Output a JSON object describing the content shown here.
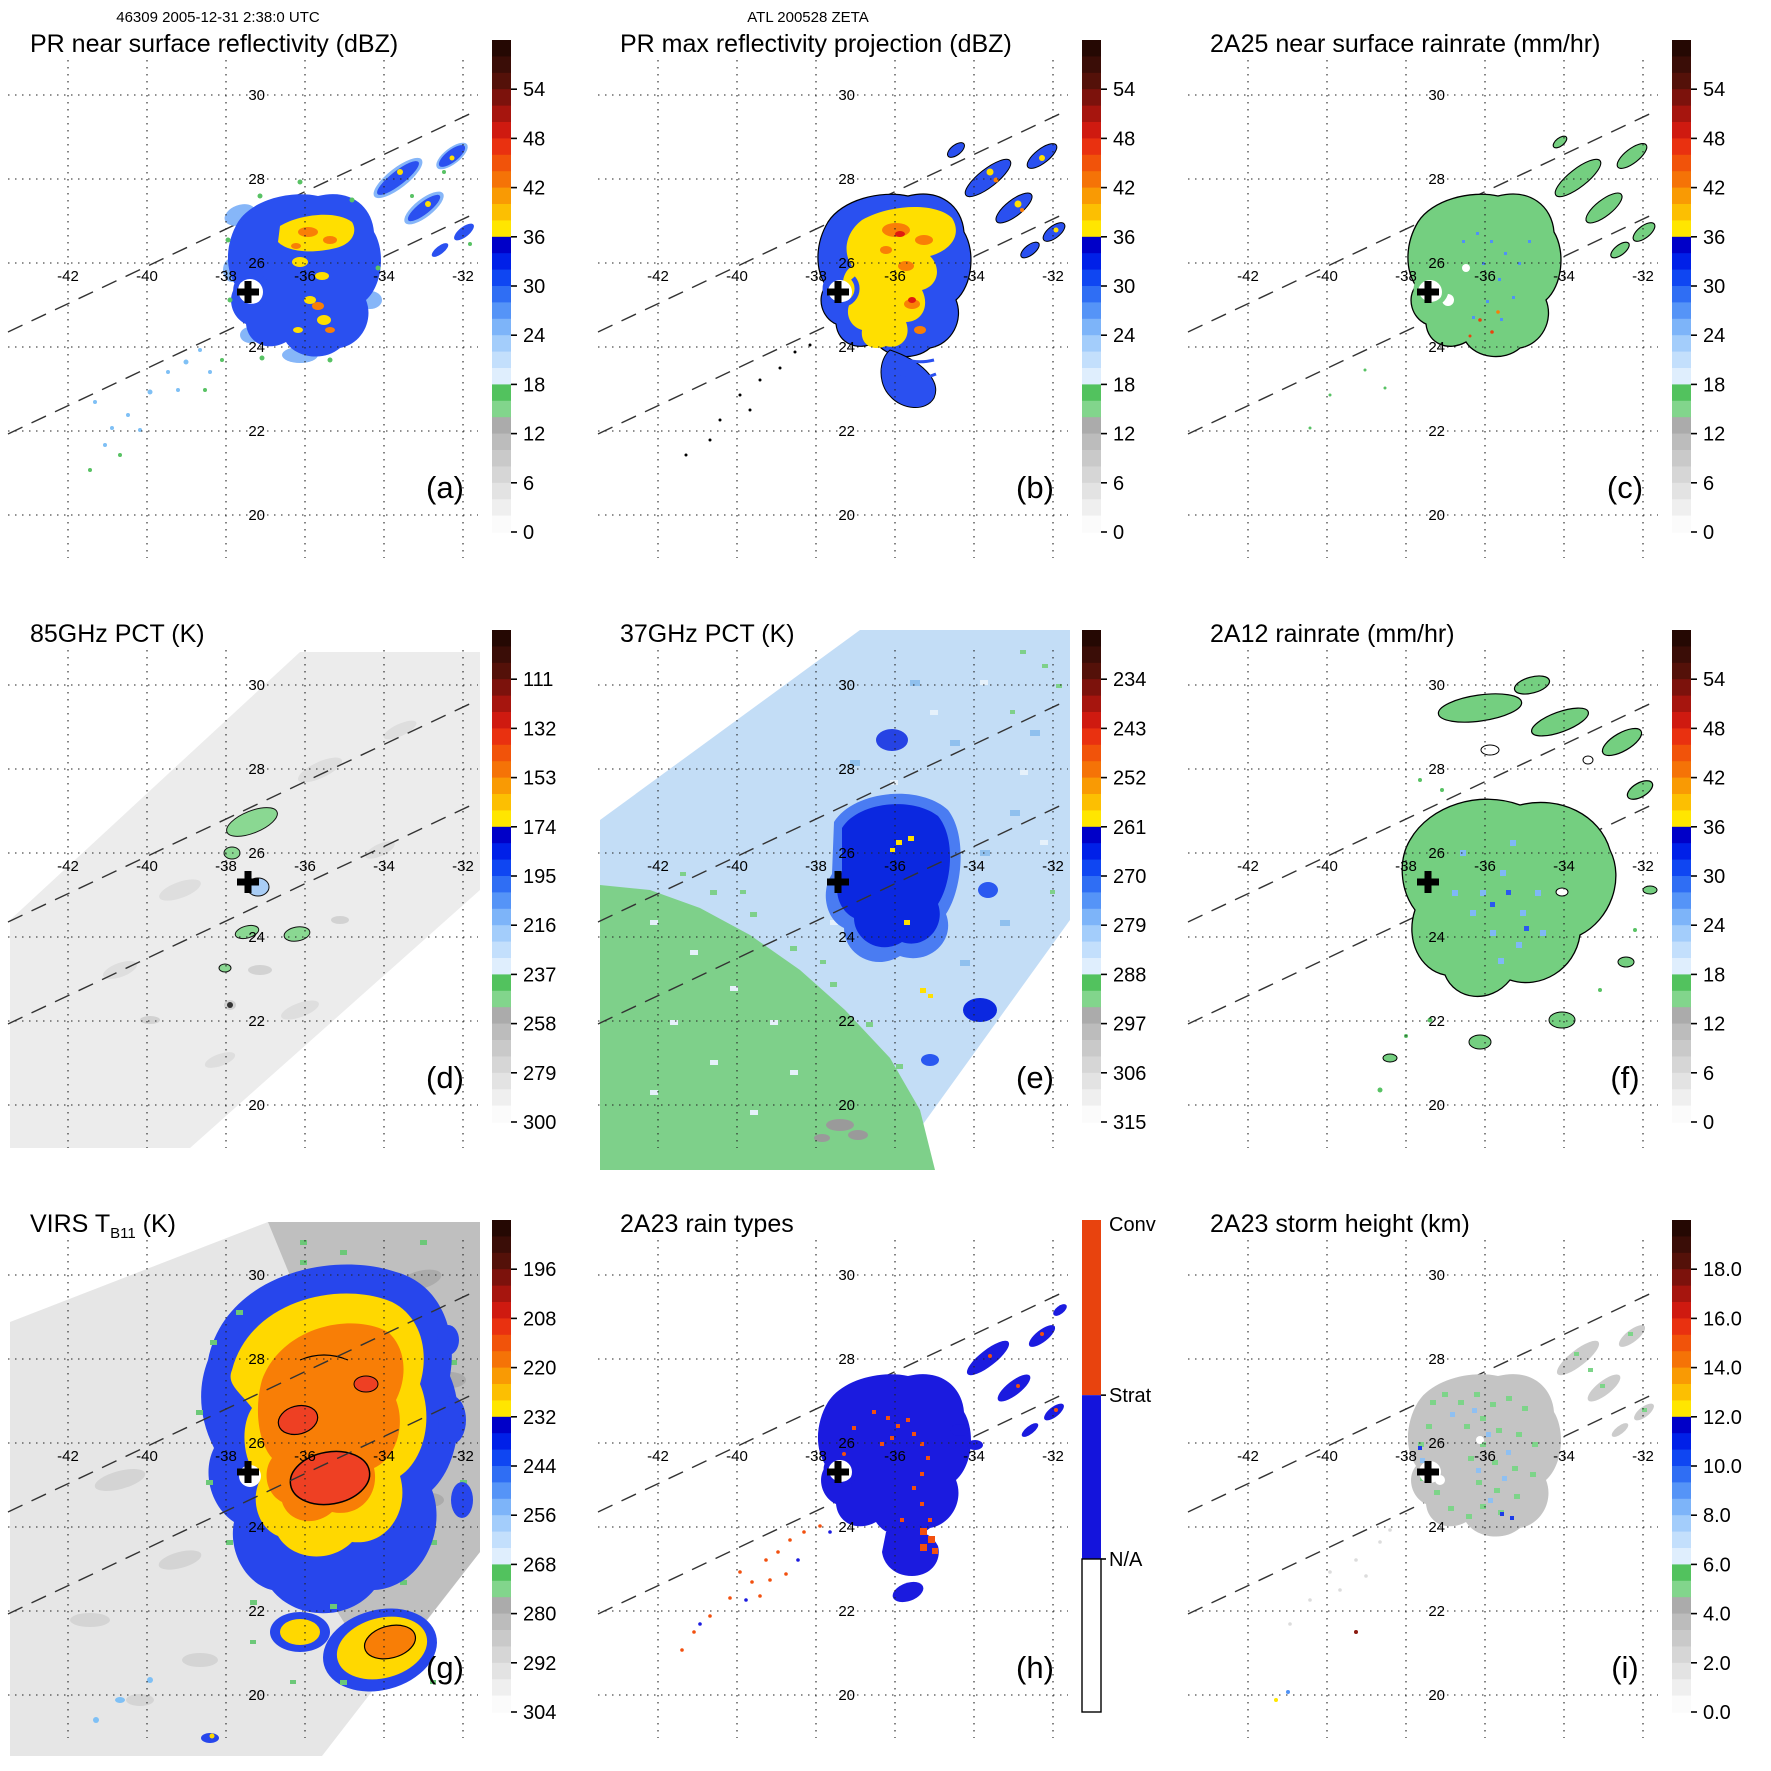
{
  "figure": {
    "header_left": "46309 2005-12-31 2:38:0 UTC",
    "header_center": "ATL 200528 ZETA"
  },
  "axes": {
    "lat_labels": [
      "30",
      "28",
      "26",
      "24",
      "22",
      "20"
    ],
    "lon_labels": [
      "-42",
      "-40",
      "-38",
      "-36",
      "-34",
      "-32"
    ]
  },
  "colorbar_colors": [
    "#250803",
    "#3a0d07",
    "#541109",
    "#7c120c",
    "#a6150e",
    "#cf1a10",
    "#e93110",
    "#f1530a",
    "#f57307",
    "#f99a04",
    "#fcbf02",
    "#ffe600",
    "#0000c8",
    "#0020e8",
    "#0f46f2",
    "#2f6ef4",
    "#5594f7",
    "#7db4f9",
    "#a3cdfb",
    "#c3dffc",
    "#dfeefd",
    "#52c25e",
    "#82d58c",
    "#ababab",
    "#bcbcbc",
    "#c9c9c9",
    "#d6d6d6",
    "#e3e3e3",
    "#efefef",
    "#fbfbfb"
  ],
  "panels": [
    {
      "id": "a",
      "letter": "(a)",
      "header": "46309 2005-12-31 2:38:0 UTC",
      "title": "PR near surface reflectivity (dBZ)",
      "colorbar": {
        "type": "scale",
        "ticks": [
          "54",
          "48",
          "42",
          "36",
          "30",
          "24",
          "18",
          "12",
          "6",
          "0"
        ]
      }
    },
    {
      "id": "b",
      "letter": "(b)",
      "header": "ATL 200528 ZETA",
      "title": "PR max reflectivity projection (dBZ)",
      "colorbar": {
        "type": "scale",
        "ticks": [
          "54",
          "48",
          "42",
          "36",
          "30",
          "24",
          "18",
          "12",
          "6",
          "0"
        ]
      }
    },
    {
      "id": "c",
      "letter": "(c)",
      "title": "2A25 near surface rainrate (mm/hr)",
      "colorbar": {
        "type": "scale",
        "ticks": [
          "54",
          "48",
          "42",
          "36",
          "30",
          "24",
          "18",
          "12",
          "6",
          "0"
        ]
      }
    },
    {
      "id": "d",
      "letter": "(d)",
      "title": "85GHz PCT (K)",
      "colorbar": {
        "type": "scale",
        "ticks": [
          "111",
          "132",
          "153",
          "174",
          "195",
          "216",
          "237",
          "258",
          "279",
          "300"
        ]
      }
    },
    {
      "id": "e",
      "letter": "(e)",
      "title": "37GHz PCT (K)",
      "colorbar": {
        "type": "scale",
        "ticks": [
          "234",
          "243",
          "252",
          "261",
          "270",
          "279",
          "288",
          "297",
          "306",
          "315"
        ]
      }
    },
    {
      "id": "f",
      "letter": "(f)",
      "title": "2A12 rainrate (mm/hr)",
      "colorbar": {
        "type": "scale",
        "ticks": [
          "54",
          "48",
          "42",
          "36",
          "30",
          "24",
          "18",
          "12",
          "6",
          "0"
        ]
      }
    },
    {
      "id": "g",
      "letter": "(g)",
      "title_pre": "VIRS T",
      "title_sub": "B11",
      "title_post": " (K)",
      "colorbar": {
        "type": "scale",
        "ticks": [
          "196",
          "208",
          "220",
          "232",
          "244",
          "256",
          "268",
          "280",
          "292",
          "304"
        ]
      }
    },
    {
      "id": "h",
      "letter": "(h)",
      "title": "2A23 rain types",
      "colorbar": {
        "type": "categorical",
        "labels": [
          "Conv",
          "Strat",
          "N/A"
        ],
        "colors": [
          "#e8430e",
          "#1414dc",
          "#ffffff"
        ],
        "boundaries": [
          0,
          0.356,
          0.689,
          1
        ]
      }
    },
    {
      "id": "i",
      "letter": "(i)",
      "title": "2A23 storm height (km)",
      "colorbar": {
        "type": "scale",
        "ticks": [
          "18.0",
          "16.0",
          "14.0",
          "12.0",
          "10.0",
          "8.0",
          "6.0",
          "4.0",
          "2.0",
          "0.0"
        ]
      }
    }
  ],
  "chart_data": [
    {
      "panel": "a",
      "type": "heatmap",
      "title": "PR near surface reflectivity (dBZ)",
      "units": "dBZ",
      "colorbar_ticks": [
        54,
        48,
        42,
        36,
        30,
        24,
        18,
        12,
        6,
        0
      ],
      "lon_gridlines": [
        -42,
        -40,
        -38,
        -36,
        -34,
        -32
      ],
      "lat_gridlines": [
        30,
        28,
        26,
        24,
        22,
        20
      ],
      "storm_center_lonlat": [
        -37.6,
        25.6
      ],
      "annotations": [
        "dashed lines = PR swath edges",
        "black plus = storm center",
        "convective core 36-48 dBZ NE of center",
        "banded echoes 24-42 dBZ in NE quadrant"
      ]
    },
    {
      "panel": "b",
      "type": "heatmap",
      "title": "PR max reflectivity projection (dBZ)",
      "units": "dBZ",
      "colorbar_ticks": [
        54,
        48,
        42,
        36,
        30,
        24,
        18,
        12,
        6,
        0
      ],
      "lon_gridlines": [
        -42,
        -40,
        -38,
        -36,
        -34,
        -32
      ],
      "lat_gridlines": [
        30,
        28,
        26,
        24,
        22,
        20
      ],
      "storm_center_lonlat": [
        -37.6,
        25.6
      ],
      "annotations": [
        "denser 36-48 dBZ core than panel a",
        "black contours outline rain area"
      ]
    },
    {
      "panel": "c",
      "type": "heatmap",
      "title": "2A25 near surface rainrate (mm/hr)",
      "units": "mm/hr",
      "colorbar_ticks": [
        54,
        48,
        42,
        36,
        30,
        24,
        18,
        12,
        6,
        0
      ],
      "lon_gridlines": [
        -42,
        -40,
        -38,
        -36,
        -34,
        -32
      ],
      "lat_gridlines": [
        30,
        28,
        26,
        24,
        22,
        20
      ],
      "storm_center_lonlat": [
        -37.6,
        25.6
      ],
      "annotations": [
        "rain area mostly 0-12 mm/hr (green) with embedded 12-30 mm/hr pixels"
      ]
    },
    {
      "panel": "d",
      "type": "heatmap",
      "title": "85GHz PCT (K)",
      "units": "K",
      "colorbar_ticks": [
        111,
        132,
        153,
        174,
        195,
        216,
        237,
        258,
        279,
        300
      ],
      "lon_gridlines": [
        -42,
        -40,
        -38,
        -36,
        -34,
        -32
      ],
      "lat_gridlines": [
        30,
        28,
        26,
        24,
        22,
        20
      ],
      "storm_center_lonlat": [
        -37.6,
        25.6
      ],
      "annotations": [
        "wide TMI swath ~280-300 K background",
        "small 216-258 K depressions near center"
      ]
    },
    {
      "panel": "e",
      "type": "heatmap",
      "title": "37GHz PCT (K)",
      "units": "K",
      "colorbar_ticks": [
        234,
        243,
        252,
        261,
        270,
        279,
        288,
        297,
        306,
        315
      ],
      "lon_gridlines": [
        -42,
        -40,
        -38,
        -36,
        -34,
        -32
      ],
      "lat_gridlines": [
        30,
        28,
        26,
        24,
        22,
        20
      ],
      "storm_center_lonlat": [
        -37.6,
        25.6
      ],
      "annotations": [
        "green ~288-297 K SW of swath",
        "light blue ~279-288 K NE",
        "dark blue 261-270 K core with few ~261 K (yellow) pixels"
      ]
    },
    {
      "panel": "f",
      "type": "heatmap",
      "title": "2A12 rainrate (mm/hr)",
      "units": "mm/hr",
      "colorbar_ticks": [
        54,
        48,
        42,
        36,
        30,
        24,
        18,
        12,
        6,
        0
      ],
      "lon_gridlines": [
        -42,
        -40,
        -38,
        -36,
        -34,
        -32
      ],
      "lat_gridlines": [
        30,
        28,
        26,
        24,
        22,
        20
      ],
      "storm_center_lonlat": [
        -37.6,
        25.6
      ],
      "annotations": [
        "broad 0-6 mm/hr (green) rain shield with 12-24 mm/hr pixels near core"
      ]
    },
    {
      "panel": "g",
      "type": "heatmap",
      "title": "VIRS T_B11 (K)",
      "units": "K",
      "colorbar_ticks": [
        196,
        208,
        220,
        232,
        244,
        256,
        268,
        280,
        292,
        304
      ],
      "lon_gridlines": [
        -42,
        -40,
        -38,
        -36,
        -34,
        -32
      ],
      "lat_gridlines": [
        30,
        28,
        26,
        24,
        22,
        20
      ],
      "storm_center_lonlat": [
        -37.6,
        25.6
      ],
      "annotations": [
        "cold cloud shield 208-232 K (orange/yellow) around center",
        "~196-208 K overshoots outlined in black",
        "clear ocean ~292-304 K (light gray)"
      ]
    },
    {
      "panel": "h",
      "type": "categorical-map",
      "title": "2A23 rain types",
      "categories": [
        "Conv",
        "Strat",
        "N/A"
      ],
      "colors": [
        "#e8430e",
        "#1414dc",
        "#ffffff"
      ],
      "lon_gridlines": [
        -42,
        -40,
        -38,
        -36,
        -34,
        -32
      ],
      "lat_gridlines": [
        30,
        28,
        26,
        24,
        22,
        20
      ],
      "storm_center_lonlat": [
        -37.6,
        25.6
      ],
      "annotations": [
        "stratiform (blue) dominates",
        "convective (red) pixels embedded NE and S of center"
      ]
    },
    {
      "panel": "i",
      "type": "heatmap",
      "title": "2A23 storm height (km)",
      "units": "km",
      "colorbar_ticks": [
        18.0,
        16.0,
        14.0,
        12.0,
        10.0,
        8.0,
        6.0,
        4.0,
        2.0,
        0.0
      ],
      "lon_gridlines": [
        -42,
        -40,
        -38,
        -36,
        -34,
        -32
      ],
      "lat_gridlines": [
        30,
        28,
        26,
        24,
        22,
        20
      ],
      "storm_center_lonlat": [
        -37.6,
        25.6
      ],
      "annotations": [
        "storm heights mostly 2-6 km (gray/green) with 8-12 km (blue) pixels"
      ]
    }
  ]
}
